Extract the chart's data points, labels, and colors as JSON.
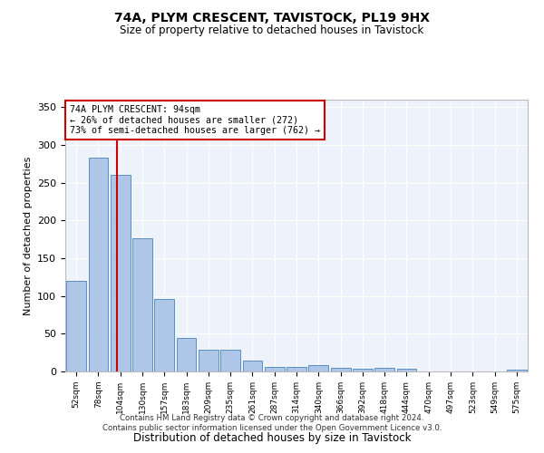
{
  "title1": "74A, PLYM CRESCENT, TAVISTOCK, PL19 9HX",
  "title2": "Size of property relative to detached houses in Tavistock",
  "xlabel": "Distribution of detached houses by size in Tavistock",
  "ylabel": "Number of detached properties",
  "annotation_line1": "74A PLYM CRESCENT: 94sqm",
  "annotation_line2": "← 26% of detached houses are smaller (272)",
  "annotation_line3": "73% of semi-detached houses are larger (762) →",
  "bar_labels": [
    "52sqm",
    "78sqm",
    "104sqm",
    "130sqm",
    "157sqm",
    "183sqm",
    "209sqm",
    "235sqm",
    "261sqm",
    "287sqm",
    "314sqm",
    "340sqm",
    "366sqm",
    "392sqm",
    "418sqm",
    "444sqm",
    "470sqm",
    "497sqm",
    "523sqm",
    "549sqm",
    "575sqm"
  ],
  "bar_values": [
    120,
    283,
    260,
    176,
    96,
    45,
    29,
    29,
    14,
    6,
    6,
    8,
    5,
    4,
    5,
    4,
    0,
    0,
    0,
    0,
    3
  ],
  "bar_color": "#aec6e8",
  "bar_edge_color": "#5a8fc0",
  "vline_color": "#cc0000",
  "annotation_box_color": "#cc0000",
  "background_color": "#eef2fb",
  "ylim": [
    0,
    360
  ],
  "yticks": [
    0,
    50,
    100,
    150,
    200,
    250,
    300,
    350
  ],
  "footer_line1": "Contains HM Land Registry data © Crown copyright and database right 2024.",
  "footer_line2": "Contains public sector information licensed under the Open Government Licence v3.0."
}
